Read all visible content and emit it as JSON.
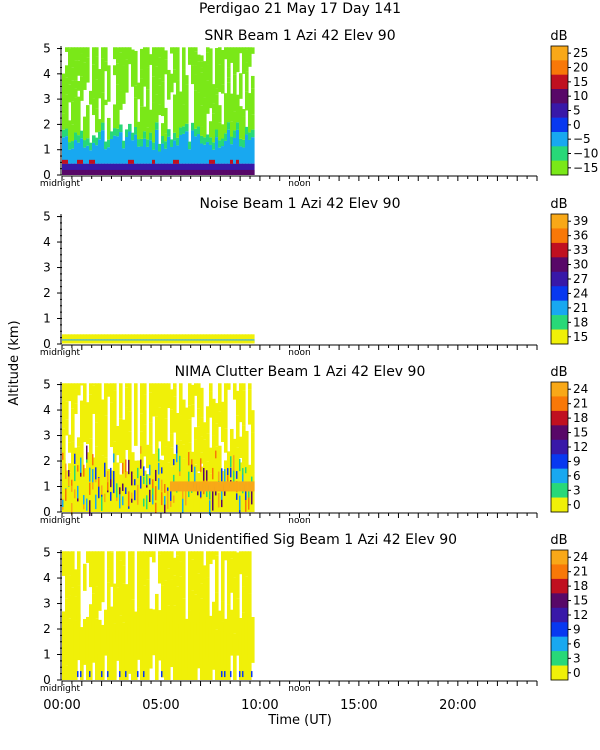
{
  "header": {
    "site_date": "Perdigao  21 May 17 Day 141"
  },
  "chart_data": [
    {
      "type": "heatmap",
      "title": "SNR Beam 1 Azi  42 Elev 90",
      "ylabel": "Altitude (km)",
      "xlabel": "Time (UT)",
      "xlim_hours": [
        0,
        24
      ],
      "ylim_km": [
        0,
        5.1
      ],
      "yticks": [
        "0",
        "1",
        "2",
        "3",
        "4",
        "5"
      ],
      "unit": "dB",
      "colorbar_ticks": [
        "25",
        "20",
        "15",
        "10",
        "5",
        "0",
        "−5",
        "−10",
        "−15"
      ],
      "data_extent_hours": [
        0,
        9.7
      ],
      "pattern": "snr"
    },
    {
      "type": "heatmap",
      "title": "Noise Beam 1 Azi  42 Elev 90",
      "ylabel": "Altitude (km)",
      "xlim_hours": [
        0,
        24
      ],
      "ylim_km": [
        0,
        5.1
      ],
      "yticks": [
        "0",
        "1",
        "2",
        "3",
        "4",
        "5"
      ],
      "unit": "dB",
      "colorbar_ticks": [
        "39",
        "36",
        "33",
        "30",
        "27",
        "24",
        "21",
        "18",
        "15"
      ],
      "data_extent_hours": [
        0,
        9.7
      ],
      "pattern": "noise"
    },
    {
      "type": "heatmap",
      "title": "NIMA Clutter Beam 1 Azi  42 Elev 90",
      "ylabel": "Altitude (km)",
      "xlim_hours": [
        0,
        24
      ],
      "ylim_km": [
        0,
        5.1
      ],
      "yticks": [
        "0",
        "1",
        "2",
        "3",
        "4",
        "5"
      ],
      "unit": "dB",
      "colorbar_ticks": [
        "24",
        "21",
        "18",
        "15",
        "12",
        "9",
        "6",
        "3",
        "0"
      ],
      "data_extent_hours": [
        0,
        9.7
      ],
      "pattern": "clutter"
    },
    {
      "type": "heatmap",
      "title": "NIMA Unidentified Sig Beam 1 Azi  42 Elev 90",
      "ylabel": "Altitude (km)",
      "xlim_hours": [
        0,
        24
      ],
      "ylim_km": [
        0,
        5.1
      ],
      "yticks": [
        "0",
        "1",
        "2",
        "3",
        "4",
        "5"
      ],
      "unit": "dB",
      "colorbar_ticks": [
        "24",
        "21",
        "18",
        "15",
        "12",
        "9",
        "6",
        "3",
        "0"
      ],
      "data_extent_hours": [
        0,
        9.7
      ],
      "pattern": "unident"
    }
  ],
  "axis": {
    "ylabel": "Altitude (km)",
    "xlabel": "Time (UT)",
    "midnight": "midnight",
    "noon": "noon",
    "xticks": [
      "00:00",
      "05:00",
      "10:00",
      "15:00",
      "20:00"
    ],
    "xtick_hours": [
      0,
      5,
      10,
      15,
      20
    ]
  },
  "colors": {
    "palette_top_to_bottom": [
      "#f8a818",
      "#f87808",
      "#c01020",
      "#580868",
      "#3818a8",
      "#0838f0",
      "#18a8f0",
      "#28d878",
      "#f0f008"
    ],
    "snr_palette_top_to_bottom": [
      "#f8a818",
      "#f87808",
      "#c01020",
      "#580868",
      "#3818a8",
      "#0838f0",
      "#18a8f0",
      "#28d878",
      "#7ae818"
    ]
  }
}
